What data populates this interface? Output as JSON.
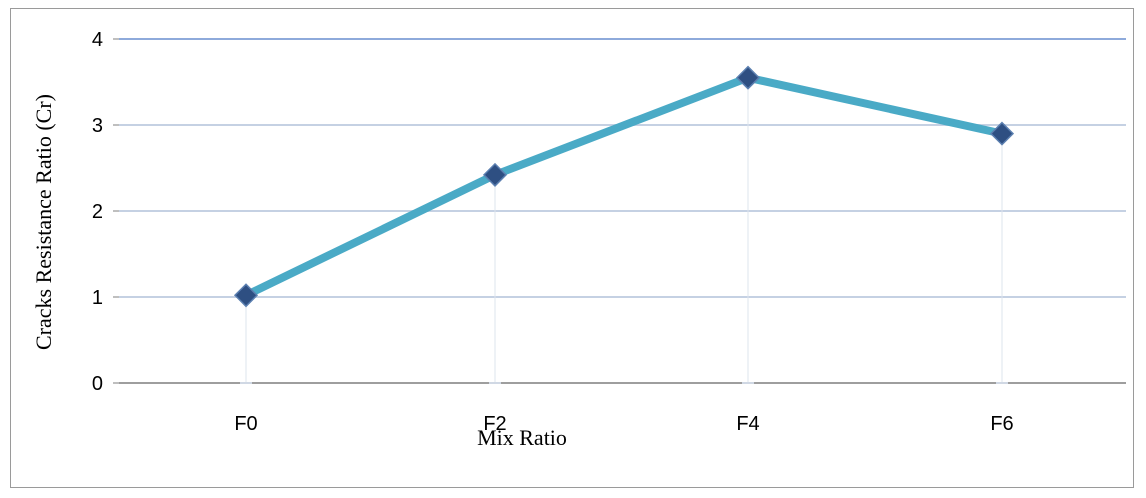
{
  "chart_data": {
    "type": "line",
    "categories": [
      "F0",
      "F2",
      "F4",
      "F6"
    ],
    "series": [
      {
        "values": [
          1.02,
          2.42,
          3.55,
          2.9
        ]
      }
    ],
    "xlabel": "Mix Ratio",
    "ylabel": "Cracks Resistance  Ratio (Cr)",
    "ylim": [
      0,
      4
    ],
    "yticks": [
      "0",
      "1",
      "2",
      "3",
      "4"
    ],
    "grid": true,
    "legend": "none",
    "colors": {
      "line": "#4aaac6",
      "marker": "#2e4f82",
      "gridline": "#c5d1e3",
      "topline": "#8eaadb",
      "dropline": "#dde4ee"
    }
  }
}
